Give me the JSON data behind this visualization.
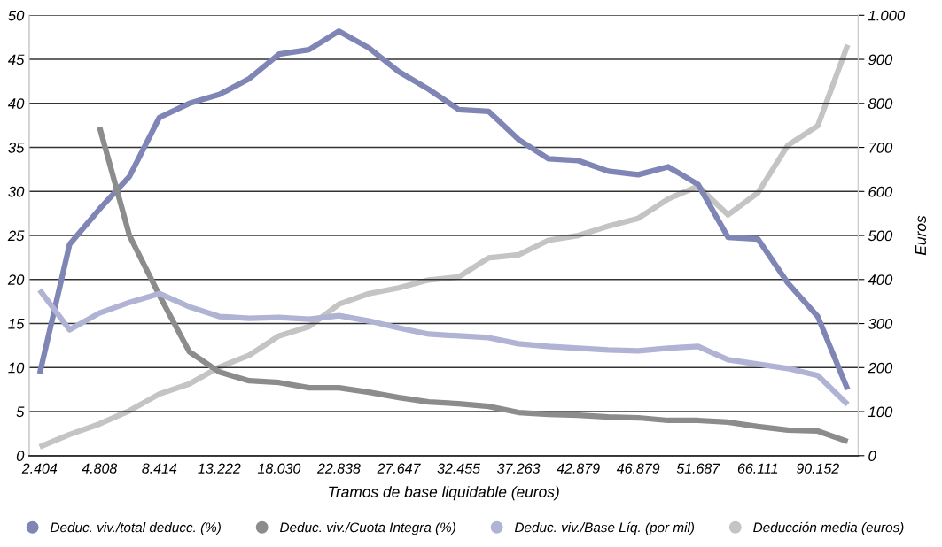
{
  "chart_data": {
    "type": "line",
    "categories": [
      "2.404",
      null,
      "4.808",
      null,
      "8.414",
      null,
      "13.222",
      null,
      "18.030",
      null,
      "22.838",
      null,
      "27.647",
      null,
      "32.455",
      null,
      "37.263",
      null,
      "42.879",
      null,
      "46.879",
      null,
      "51.687",
      null,
      "66.111",
      null,
      "90.152",
      null
    ],
    "xlabel": "Tramos de base liquidable (euros)",
    "y2label": "Euros",
    "series": [
      {
        "name": "Deduc. viv./total deducc. (%)",
        "color": "#7f86b5",
        "values": [
          9.3,
          24.0,
          28.0,
          31.7,
          38.4,
          40.0,
          41.0,
          42.8,
          45.6,
          46.1,
          48.2,
          46.3,
          43.6,
          41.6,
          39.3,
          39.1,
          35.9,
          33.7,
          33.5,
          32.3,
          31.9,
          32.8,
          30.8,
          24.8,
          24.6,
          19.6,
          15.8,
          7.5
        ]
      },
      {
        "name": "Deduc. viv./Cuota Integra (%)",
        "color": "#8c8c8c",
        "values": [
          null,
          null,
          37.3,
          25.0,
          18.2,
          11.8,
          9.5,
          8.5,
          8.3,
          7.7,
          7.7,
          7.2,
          6.6,
          6.1,
          5.9,
          5.6,
          4.9,
          4.7,
          4.6,
          4.4,
          4.3,
          4.0,
          4.0,
          3.8,
          3.3,
          2.9,
          2.8,
          1.6
        ]
      },
      {
        "name": "Deduc. viv./Base Líq. (por mil)",
        "color": "#b0b3d4",
        "values": [
          18.8,
          14.3,
          16.2,
          17.4,
          18.4,
          16.9,
          15.8,
          15.6,
          15.7,
          15.5,
          15.9,
          15.3,
          14.5,
          13.8,
          13.6,
          13.4,
          12.7,
          12.4,
          12.2,
          12.0,
          11.9,
          12.2,
          12.4,
          10.9,
          10.4,
          9.9,
          9.1,
          5.8
        ]
      },
      {
        "name": "Deducción media (euros)",
        "color": "#c4c4c4",
        "axis": "y2",
        "values": [
          20,
          48,
          72,
          102,
          140,
          163,
          201,
          228,
          272,
          293,
          344,
          368,
          381,
          399,
          406,
          449,
          456,
          489,
          500,
          521,
          539,
          583,
          612,
          547,
          597,
          705,
          749,
          933
        ]
      }
    ],
    "ylim": [
      0,
      50
    ],
    "yticks": [
      0,
      5,
      10,
      15,
      20,
      25,
      30,
      35,
      40,
      45,
      50
    ],
    "y2lim": [
      0,
      1000
    ],
    "y2ticks": [
      0,
      100,
      200,
      300,
      400,
      500,
      600,
      700,
      800,
      900,
      {
        "value": 1000,
        "label": "1.000"
      }
    ],
    "grid": "y",
    "legend": "bottom",
    "marker": "none",
    "line_style": "solid"
  }
}
